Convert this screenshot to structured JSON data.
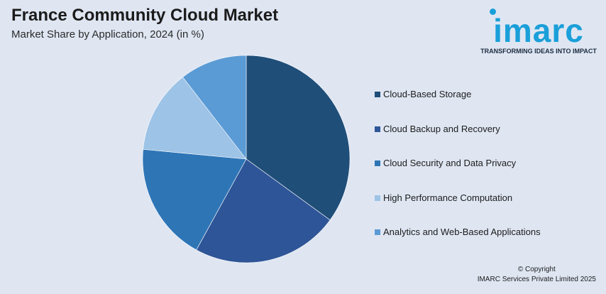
{
  "header": {
    "title": "France Community Cloud Market",
    "subtitle": "Market Share by Application, 2024 (in %)"
  },
  "logo": {
    "word": "imarc",
    "tagline": "TRANSFORMING IDEAS INTO IMPACT"
  },
  "chart_data": {
    "type": "pie",
    "title": "France Community Cloud Market",
    "subtitle": "Market Share by Application, 2024 (in %)",
    "legend_position": "right",
    "categories": [
      "Cloud-Based Storage",
      "Cloud Backup and Recovery",
      "Cloud Security and Data Privacy",
      "High Performance Computation",
      "Analytics and Web-Based Applications"
    ],
    "values": [
      35,
      23,
      18.5,
      13,
      10.5
    ],
    "colors": [
      "#1f4e79",
      "#2e5597",
      "#2e75b6",
      "#9dc3e6",
      "#5b9bd5"
    ]
  },
  "footer": {
    "copyright_line1": "© Copyright",
    "copyright_line2": "IMARC Services Private Limited 2025"
  }
}
